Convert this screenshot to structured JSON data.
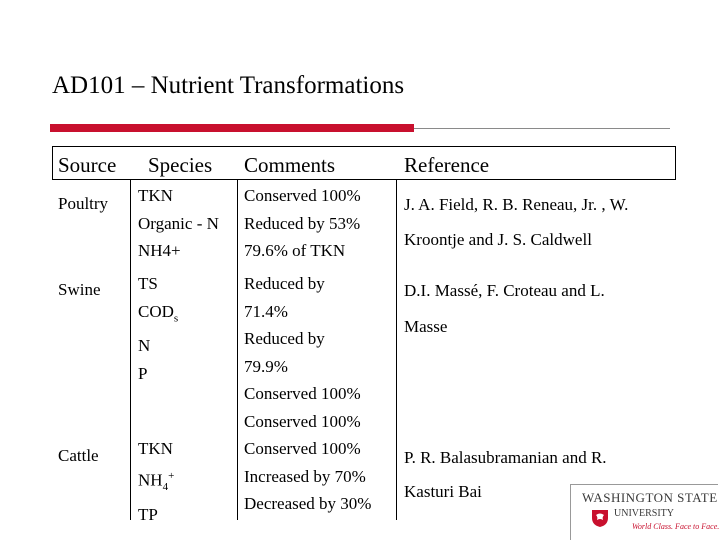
{
  "title": "AD101 – Nutrient Transformations",
  "headers": {
    "source": "Source",
    "species": "Species",
    "comments": "Comments",
    "reference": "Reference"
  },
  "rows": {
    "poultry": {
      "source": "Poultry",
      "species": [
        "TKN",
        "Organic - N",
        "NH4+"
      ],
      "comments": [
        "Conserved 100%",
        "Reduced by 53%",
        "79.6% of TKN"
      ],
      "reference": [
        "J. A. Field, R. B. Reneau, Jr. , W.",
        "Kroontje and J. S. Caldwell"
      ]
    },
    "swine": {
      "source": "Swine",
      "species": [
        "TS",
        "COD",
        "N",
        "P"
      ],
      "species_sub": "s",
      "comments": [
        "Reduced by",
        "71.4%",
        "Reduced by",
        "79.9%",
        "Conserved 100%",
        "Conserved 100%"
      ],
      "reference": [
        "D.I. Massé, F. Croteau and L.",
        "Masse"
      ]
    },
    "cattle": {
      "source": "Cattle",
      "species": [
        "TKN",
        "NH",
        "TP"
      ],
      "species_sub": "4",
      "species_sup": "+",
      "comments": [
        "Conserved 100%",
        "Increased by 70%",
        "Decreased by 30%"
      ],
      "reference": [
        "P. R. Balasubramanian and R.",
        "Kasturi Bai"
      ]
    }
  },
  "logo": {
    "line1": "WASHINGTON STATE",
    "line2": "UNIVERSITY",
    "tagline": "World Class. Face to Face."
  },
  "colors": {
    "accent_red": "#c8102e",
    "rule_gray": "#8a8a8a"
  }
}
